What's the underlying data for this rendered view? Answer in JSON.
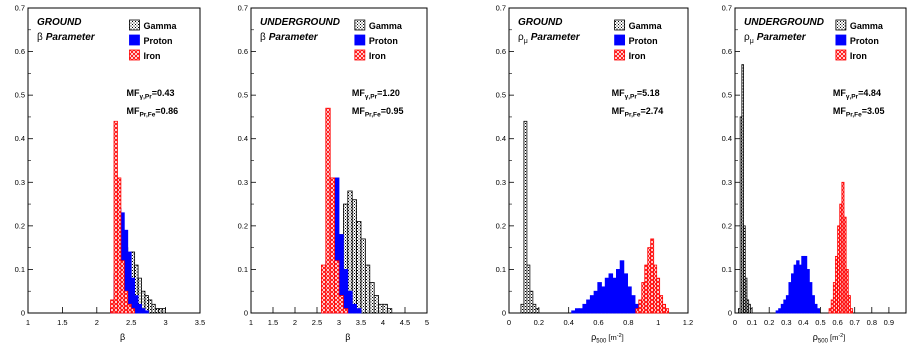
{
  "chart_data": [
    {
      "type": "bar",
      "panel_label": "GROUND",
      "param_symbol": "β",
      "param_sub": "",
      "param_word": "Parameter",
      "xlabel": "β",
      "xlabel_sub": "",
      "xlabel_unit": "",
      "xlim": [
        1,
        3.5
      ],
      "ylim": [
        0,
        0.7
      ],
      "xticks": [
        "1",
        "1.5",
        "2",
        "2.5",
        "3",
        "3.5"
      ],
      "xtick_values": [
        1,
        1.5,
        2,
        2.5,
        3,
        3.5
      ],
      "yticks": [
        "0",
        "0.1",
        "0.2",
        "0.3",
        "0.4",
        "0.5",
        "0.6",
        "0.7"
      ],
      "ytick_values": [
        0,
        0.1,
        0.2,
        0.3,
        0.4,
        0.5,
        0.6,
        0.7
      ],
      "legend": [
        "Gamma",
        "Proton",
        "Iron"
      ],
      "mf": [
        {
          "pre": "MF",
          "sub": "γ,Pr",
          "val": "=0.43"
        },
        {
          "pre": "MF",
          "sub": "Pr,Fe",
          "val": "=0.86"
        }
      ],
      "bin_start": 2.2,
      "bin_width": 0.05,
      "series": [
        {
          "name": "Gamma",
          "values": [
            0.01,
            0.02,
            0.07,
            0.13,
            0.15,
            0.13,
            0.14,
            0.11,
            0.08,
            0.05,
            0.04,
            0.03,
            0.02,
            0.01,
            0.01,
            0.01
          ]
        },
        {
          "name": "Proton",
          "values": [
            0.01,
            0.09,
            0.24,
            0.23,
            0.19,
            0.14,
            0.08,
            0.04,
            0.02,
            0.01,
            0.005
          ]
        },
        {
          "name": "Iron",
          "values": [
            0.03,
            0.44,
            0.31,
            0.12,
            0.05,
            0.02,
            0.01
          ]
        }
      ]
    },
    {
      "type": "bar",
      "panel_label": "UNDERGROUND",
      "param_symbol": "β",
      "param_sub": "",
      "param_word": "Parameter",
      "xlabel": "β",
      "xlabel_sub": "",
      "xlabel_unit": "",
      "xlim": [
        1,
        5
      ],
      "ylim": [
        0,
        0.7
      ],
      "xticks": [
        "1",
        "1.5",
        "2",
        "2.5",
        "3",
        "3.5",
        "4",
        "4.5",
        "5"
      ],
      "xtick_values": [
        1,
        1.5,
        2,
        2.5,
        3,
        3.5,
        4,
        4.5,
        5
      ],
      "yticks": [
        "0",
        "0.1",
        "0.2",
        "0.3",
        "0.4",
        "0.5",
        "0.6",
        "0.7"
      ],
      "ytick_values": [
        0,
        0.1,
        0.2,
        0.3,
        0.4,
        0.5,
        0.6,
        0.7
      ],
      "legend": [
        "Gamma",
        "Proton",
        "Iron"
      ],
      "mf": [
        {
          "pre": "MF",
          "sub": "γ,Pr",
          "val": "=1.20"
        },
        {
          "pre": "MF",
          "sub": "Pr,Fe",
          "val": "=0.95"
        }
      ],
      "bin_start": 2.6,
      "bin_width": 0.1,
      "series": [
        {
          "name": "Gamma",
          "values": [
            0.0,
            0.02,
            0.06,
            0.17,
            0.18,
            0.25,
            0.28,
            0.26,
            0.21,
            0.17,
            0.11,
            0.07,
            0.04,
            0.02,
            0.02,
            0.01
          ]
        },
        {
          "name": "Proton",
          "values": [
            0.03,
            0.12,
            0.29,
            0.31,
            0.18,
            0.1,
            0.05,
            0.02,
            0.01
          ]
        },
        {
          "name": "Iron",
          "values": [
            0.11,
            0.47,
            0.31,
            0.12,
            0.04,
            0.01
          ]
        }
      ]
    },
    {
      "type": "bar",
      "panel_label": "GROUND",
      "param_symbol": "ρ",
      "param_sub": "μ",
      "param_word": "Parameter",
      "xlabel": "ρ",
      "xlabel_sub": "500",
      "xlabel_unit": " [m",
      "xlabel_sup": "-2",
      "xlabel_end": "]",
      "xlim": [
        0,
        1.2
      ],
      "ylim": [
        0,
        0.7
      ],
      "xticks": [
        "0",
        "0.2",
        "0.4",
        "0.6",
        "0.8",
        "1",
        "1.2"
      ],
      "xtick_values": [
        0,
        0.2,
        0.4,
        0.6,
        0.8,
        1.0,
        1.2
      ],
      "yticks": [
        "0",
        "0.1",
        "0.2",
        "0.3",
        "0.4",
        "0.5",
        "0.6",
        "0.7"
      ],
      "ytick_values": [
        0,
        0.1,
        0.2,
        0.3,
        0.4,
        0.5,
        0.6,
        0.7
      ],
      "legend": [
        "Gamma",
        "Proton",
        "Iron"
      ],
      "mf": [
        {
          "pre": "MF",
          "sub": "γ,Pr",
          "val": "=5.18"
        },
        {
          "pre": "MF",
          "sub": "Pr,Fe",
          "val": "=2.74"
        }
      ],
      "bins": [
        {
          "name": "Gamma",
          "start": 0.08,
          "width": 0.02,
          "values": [
            0.02,
            0.44,
            0.11,
            0.05,
            0.02,
            0.01
          ]
        },
        {
          "name": "Proton",
          "start": 0.42,
          "width": 0.025,
          "values": [
            0.005,
            0.01,
            0.01,
            0.02,
            0.03,
            0.04,
            0.05,
            0.07,
            0.06,
            0.08,
            0.09,
            0.08,
            0.1,
            0.12,
            0.09,
            0.06,
            0.04,
            0.02,
            0.01
          ]
        },
        {
          "name": "Iron",
          "start": 0.85,
          "width": 0.02,
          "values": [
            0.01,
            0.03,
            0.07,
            0.11,
            0.15,
            0.17,
            0.11,
            0.08,
            0.04,
            0.02,
            0.01
          ]
        }
      ]
    },
    {
      "type": "bar",
      "panel_label": "UNDERGROUND",
      "param_symbol": "ρ",
      "param_sub": "μ",
      "param_word": "Parameter",
      "xlabel": "ρ",
      "xlabel_sub": "500",
      "xlabel_unit": " [m",
      "xlabel_sup": "-2",
      "xlabel_end": "]",
      "xlim": [
        0,
        1
      ],
      "ylim": [
        0,
        0.7
      ],
      "xticks": [
        "0",
        "0.1",
        "0.2",
        "0.3",
        "0.4",
        "0.5",
        "0.6",
        "0.7",
        "0.8",
        "0.9"
      ],
      "xtick_values": [
        0,
        0.1,
        0.2,
        0.3,
        0.4,
        0.5,
        0.6,
        0.7,
        0.8,
        0.9
      ],
      "yticks": [
        "0",
        "0.1",
        "0.2",
        "0.3",
        "0.4",
        "0.5",
        "0.6",
        "0.7"
      ],
      "ytick_values": [
        0,
        0.1,
        0.2,
        0.3,
        0.4,
        0.5,
        0.6,
        0.7
      ],
      "legend": [
        "Gamma",
        "Proton",
        "Iron"
      ],
      "mf": [
        {
          "pre": "MF",
          "sub": "γ,Pr",
          "val": "=4.84"
        },
        {
          "pre": "MF",
          "sub": "Pr,Fe",
          "val": "=3.05"
        }
      ],
      "bins": [
        {
          "name": "Gamma",
          "start": 0.02,
          "width": 0.01,
          "values": [
            0.01,
            0.45,
            0.57,
            0.2,
            0.08,
            0.03,
            0.02,
            0.01
          ]
        },
        {
          "name": "Proton",
          "start": 0.24,
          "width": 0.015,
          "values": [
            0.005,
            0.01,
            0.02,
            0.03,
            0.04,
            0.07,
            0.09,
            0.11,
            0.12,
            0.11,
            0.13,
            0.13,
            0.1,
            0.07,
            0.04,
            0.02,
            0.01
          ]
        },
        {
          "name": "Iron",
          "start": 0.55,
          "width": 0.0125,
          "values": [
            0.01,
            0.03,
            0.07,
            0.13,
            0.2,
            0.25,
            0.3,
            0.22,
            0.1,
            0.04,
            0.01
          ]
        }
      ]
    }
  ],
  "colors": {
    "gamma": "#000000",
    "proton": "#0000ff",
    "iron": "#ff0000"
  }
}
